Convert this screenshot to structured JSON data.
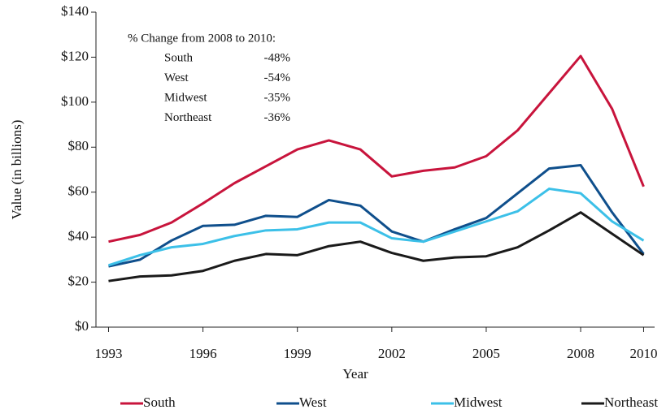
{
  "chart_data": {
    "type": "line",
    "y_label": "Value (in billions)",
    "x_label": "Year",
    "x": [
      1993,
      1994,
      1995,
      1996,
      1997,
      1998,
      1999,
      2000,
      2001,
      2002,
      2003,
      2004,
      2005,
      2006,
      2007,
      2008,
      2009,
      2010
    ],
    "series": [
      {
        "name": "South",
        "color": "#c8143c",
        "values": [
          38,
          41,
          46.5,
          55,
          64,
          71.5,
          79,
          83,
          79,
          67,
          69.5,
          71,
          76,
          87.5,
          104,
          120.5,
          97,
          62.5
        ]
      },
      {
        "name": "West",
        "color": "#0f4f8c",
        "values": [
          27,
          30,
          38.5,
          45,
          45.5,
          49.5,
          49,
          56.5,
          54,
          42.5,
          38,
          43.5,
          48.5,
          59.5,
          70.5,
          72,
          51,
          32.5
        ]
      },
      {
        "name": "Midwest",
        "color": "#3cc0e8",
        "values": [
          27.5,
          32,
          35.5,
          37,
          40.5,
          43,
          43.5,
          46.5,
          46.5,
          39.5,
          38,
          42.5,
          47,
          51.5,
          61.5,
          59.5,
          47,
          38.5
        ]
      },
      {
        "name": "Northeast",
        "color": "#1a1a1a",
        "values": [
          20.5,
          22.5,
          23,
          25,
          29.5,
          32.5,
          32,
          36,
          38,
          33,
          29.5,
          31,
          31.5,
          35.5,
          43,
          51,
          41.5,
          32
        ]
      }
    ],
    "xlim": [
      1992.6,
      2010.35
    ],
    "xticks": [
      1993,
      1996,
      1999,
      2002,
      2005,
      2008,
      2010
    ],
    "ylim": [
      0,
      140
    ],
    "yticks": [
      {
        "value": 0,
        "label": "$0"
      },
      {
        "value": 20,
        "label": "$20"
      },
      {
        "value": 40,
        "label": "$40"
      },
      {
        "value": 60,
        "label": "$60"
      },
      {
        "value": 80,
        "label": "$80"
      },
      {
        "value": 100,
        "label": "$100"
      },
      {
        "value": 120,
        "label": "$120"
      },
      {
        "value": 140,
        "label": "$140"
      }
    ],
    "annotation": {
      "title": "% Change from 2008 to 2010:",
      "rows": [
        {
          "region": "South",
          "value": -48,
          "label": "-48%"
        },
        {
          "region": "West",
          "value": -54,
          "label": "-54%"
        },
        {
          "region": "Midwest",
          "value": -35,
          "label": "-35%"
        },
        {
          "region": "Northeast",
          "value": -36,
          "label": "-36%"
        }
      ]
    },
    "legend": "bottom",
    "grid": false
  }
}
